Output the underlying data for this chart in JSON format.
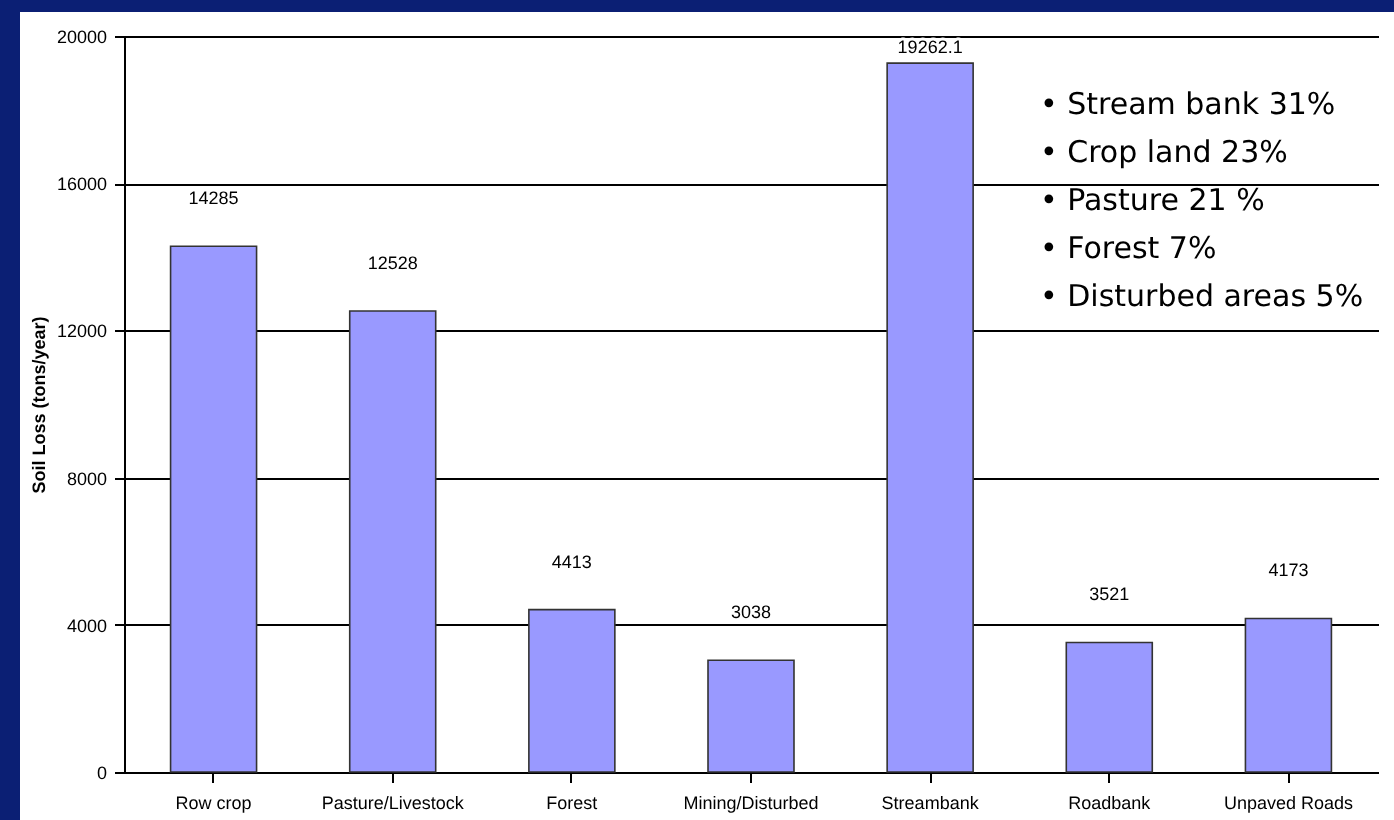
{
  "chart_data": {
    "type": "bar",
    "ylabel": "Soil Loss (tons/year)",
    "categories": [
      "Row crop",
      "Pasture/Livestock",
      "Forest",
      "Mining/Disturbed",
      "Streambank",
      "Roadbank",
      "Unpaved Roads"
    ],
    "values": [
      14285,
      12528,
      4413,
      3038,
      19262.1,
      3521,
      4173
    ],
    "color": "#9999ff",
    "data_labels": true,
    "ylim": [
      0,
      20000
    ],
    "yticks": [
      0,
      4000,
      8000,
      12000,
      16000,
      20000
    ],
    "grid": "y",
    "annotations": [
      "• Stream bank 31%",
      "• Crop land 23%",
      "• Pasture 21 %",
      "• Forest 7%",
      "• Disturbed areas 5%"
    ]
  }
}
